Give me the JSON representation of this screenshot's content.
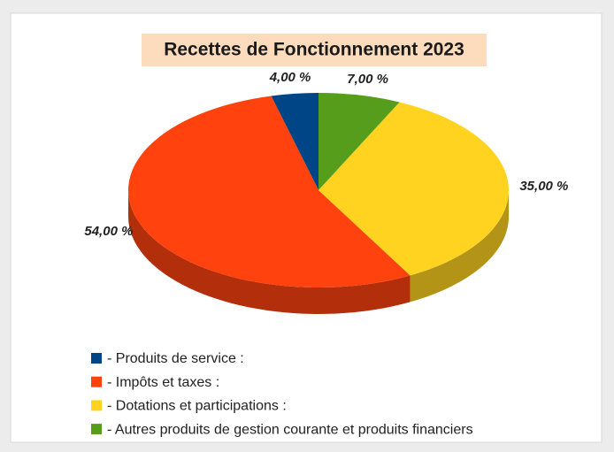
{
  "chart_data": {
    "type": "pie",
    "title": "Recettes de Fonctionnement 2023",
    "categories": [
      "- Produits de service :",
      "- Impôts et taxes :",
      "- Dotations et participations :",
      "- Autres produits de gestion courante et produits financiers"
    ],
    "values": [
      4,
      54,
      35,
      7
    ],
    "value_labels": [
      "4,00 %",
      "54,00 %",
      "35,00 %",
      "7,00 %"
    ],
    "colors": [
      "#004586",
      "#ff420e",
      "#ffd320",
      "#579d1c"
    ],
    "legend": "bottom"
  }
}
